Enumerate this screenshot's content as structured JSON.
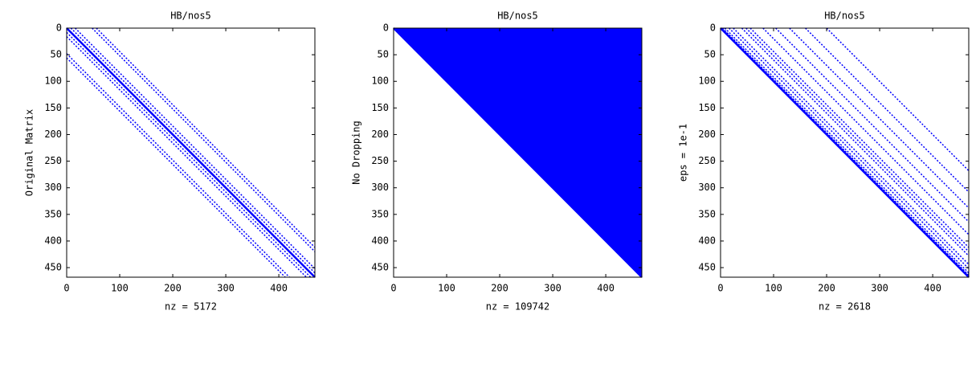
{
  "chart_data": [
    {
      "type": "spy",
      "title": "HB/nos5",
      "ylabel": "Original Matrix",
      "xlabel": "nz = 5172",
      "color": "#0000ff",
      "xlim": [
        0,
        468
      ],
      "ylim": [
        0,
        468
      ],
      "xticks": [
        0,
        100,
        200,
        300,
        400
      ],
      "yticks": [
        0,
        50,
        100,
        150,
        200,
        250,
        300,
        350,
        400,
        450
      ],
      "diagonals": [
        -56,
        -48,
        -16,
        -8,
        0,
        8,
        16,
        48,
        56
      ],
      "fill": "none"
    },
    {
      "type": "spy",
      "title": "HB/nos5",
      "ylabel": "No Dropping",
      "xlabel": "nz = 109742",
      "color": "#0000ff",
      "xlim": [
        0,
        468
      ],
      "ylim": [
        0,
        468
      ],
      "xticks": [
        0,
        100,
        200,
        300,
        400
      ],
      "yticks": [
        0,
        50,
        100,
        150,
        200,
        250,
        300,
        350,
        400,
        450
      ],
      "diagonals": [
        0
      ],
      "fill": "upper"
    },
    {
      "type": "spy",
      "title": "HB/nos5",
      "ylabel": "eps = 1e-1",
      "xlabel": "nz = 2618",
      "color": "#0000ff",
      "xlim": [
        0,
        468
      ],
      "ylim": [
        0,
        468
      ],
      "xticks": [
        0,
        100,
        200,
        300,
        400
      ],
      "yticks": [
        0,
        50,
        100,
        150,
        200,
        250,
        300,
        350,
        400,
        450
      ],
      "diagonals": [
        0,
        2,
        4,
        8,
        16,
        24,
        40,
        48,
        56,
        80,
        104,
        130,
        160,
        200
      ],
      "fill": "none"
    }
  ]
}
